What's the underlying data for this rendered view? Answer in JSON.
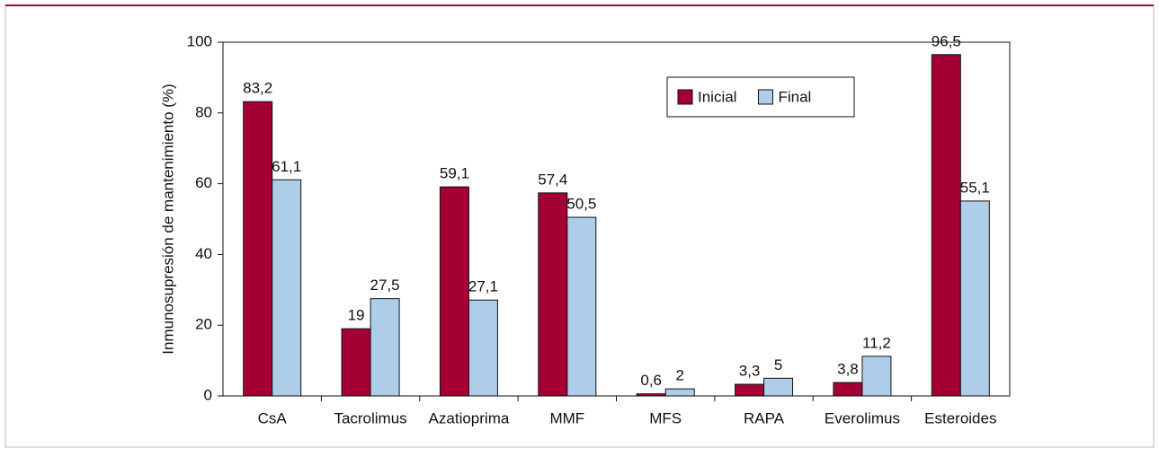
{
  "chart_data": {
    "type": "bar",
    "ylabel": "Inmunosupresión de mantenimiento (%)",
    "categories": [
      "CsA",
      "Tacrolimus",
      "Azatioprima",
      "MMF",
      "MFS",
      "RAPA",
      "Everolimus",
      "Esteroides"
    ],
    "series": [
      {
        "name": "Inicial",
        "color": "#a50034",
        "values": [
          83.2,
          19,
          59.1,
          57.4,
          0.6,
          3.3,
          3.8,
          96.5
        ],
        "value_labels": [
          "83,2",
          "19",
          "59,1",
          "57,4",
          "0,6",
          "3,3",
          "3,8",
          "96,5"
        ]
      },
      {
        "name": "Final",
        "color": "#aecde9",
        "values": [
          61.1,
          27.5,
          27.1,
          50.5,
          2,
          5,
          11.2,
          55.1
        ],
        "value_labels": [
          "61,1",
          "27,5",
          "27,1",
          "50,5",
          "2",
          "5",
          "11,2",
          "55,1"
        ]
      }
    ],
    "ylim": [
      0,
      100
    ],
    "yticks": [
      0,
      20,
      40,
      60,
      80,
      100
    ],
    "grid": false,
    "legend": "top-right"
  }
}
